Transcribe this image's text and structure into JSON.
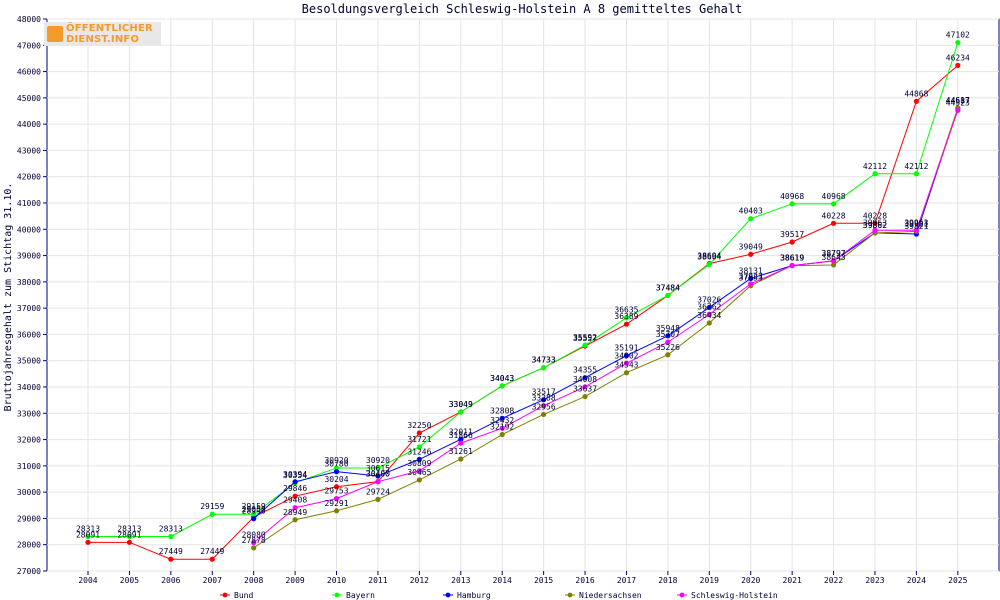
{
  "logo": {
    "line1": "ÖFFENTLICHER",
    "line2": "DIENST.INFO"
  },
  "chart_data": {
    "type": "line",
    "title": "Besoldungsvergleich Schleswig-Holstein A 8 gemitteltes Gehalt",
    "xlabel": "",
    "ylabel": "Bruttojahresgehalt zum Stichtag 31.10.",
    "ylim": [
      27000,
      48000
    ],
    "yticks": [
      27000,
      28000,
      29000,
      30000,
      31000,
      32000,
      33000,
      34000,
      35000,
      36000,
      37000,
      38000,
      39000,
      40000,
      41000,
      42000,
      43000,
      44000,
      45000,
      46000,
      47000,
      48000
    ],
    "categories": [
      "2004",
      "2005",
      "2006",
      "2007",
      "2008",
      "2009",
      "2010",
      "2011",
      "2012",
      "2013",
      "2014",
      "2015",
      "2016",
      "2017",
      "2018",
      "2019",
      "2020",
      "2021",
      "2022",
      "2023",
      "2024",
      "2025"
    ],
    "grid": true,
    "legend_position": "bottom",
    "series": [
      {
        "name": "Bund",
        "color": "#ff0000",
        "values": [
          28091,
          28091,
          27449,
          27449,
          29050,
          29846,
          30204,
          30400,
          32250,
          33049,
          34043,
          34733,
          35557,
          36389,
          37484,
          38694,
          39049,
          39517,
          40228,
          40228,
          44868,
          46234
        ]
      },
      {
        "name": "Bayern",
        "color": "#00ff00",
        "values": [
          28313,
          28313,
          28313,
          29159,
          29159,
          30354,
          30920,
          30920,
          31721,
          33049,
          34043,
          34733,
          35592,
          36635,
          37484,
          38664,
          40403,
          40968,
          40968,
          42112,
          42112,
          47102
        ]
      },
      {
        "name": "Hamburg",
        "color": "#0000ff",
        "values": [
          null,
          null,
          null,
          null,
          28990,
          30394,
          30780,
          30615,
          31246,
          32011,
          32808,
          33517,
          34355,
          35191,
          35948,
          37026,
          38131,
          38619,
          38797,
          39862,
          39821,
          44587
        ]
      },
      {
        "name": "Niedersachsen",
        "color": "#808000",
        "values": [
          null,
          null,
          null,
          null,
          27878,
          28949,
          29291,
          29724,
          30465,
          31261,
          32192,
          32956,
          33637,
          34543,
          35226,
          36434,
          37853,
          38619,
          38643,
          39862,
          39921,
          44617
        ]
      },
      {
        "name": "Schleswig-Holstein",
        "color": "#ff00ff",
        "values": [
          null,
          null,
          null,
          null,
          28080,
          29408,
          29753,
          30400,
          30809,
          31866,
          32432,
          33288,
          34008,
          34902,
          35707,
          36762,
          37923,
          38619,
          38797,
          39963,
          39963,
          44523
        ]
      }
    ]
  }
}
